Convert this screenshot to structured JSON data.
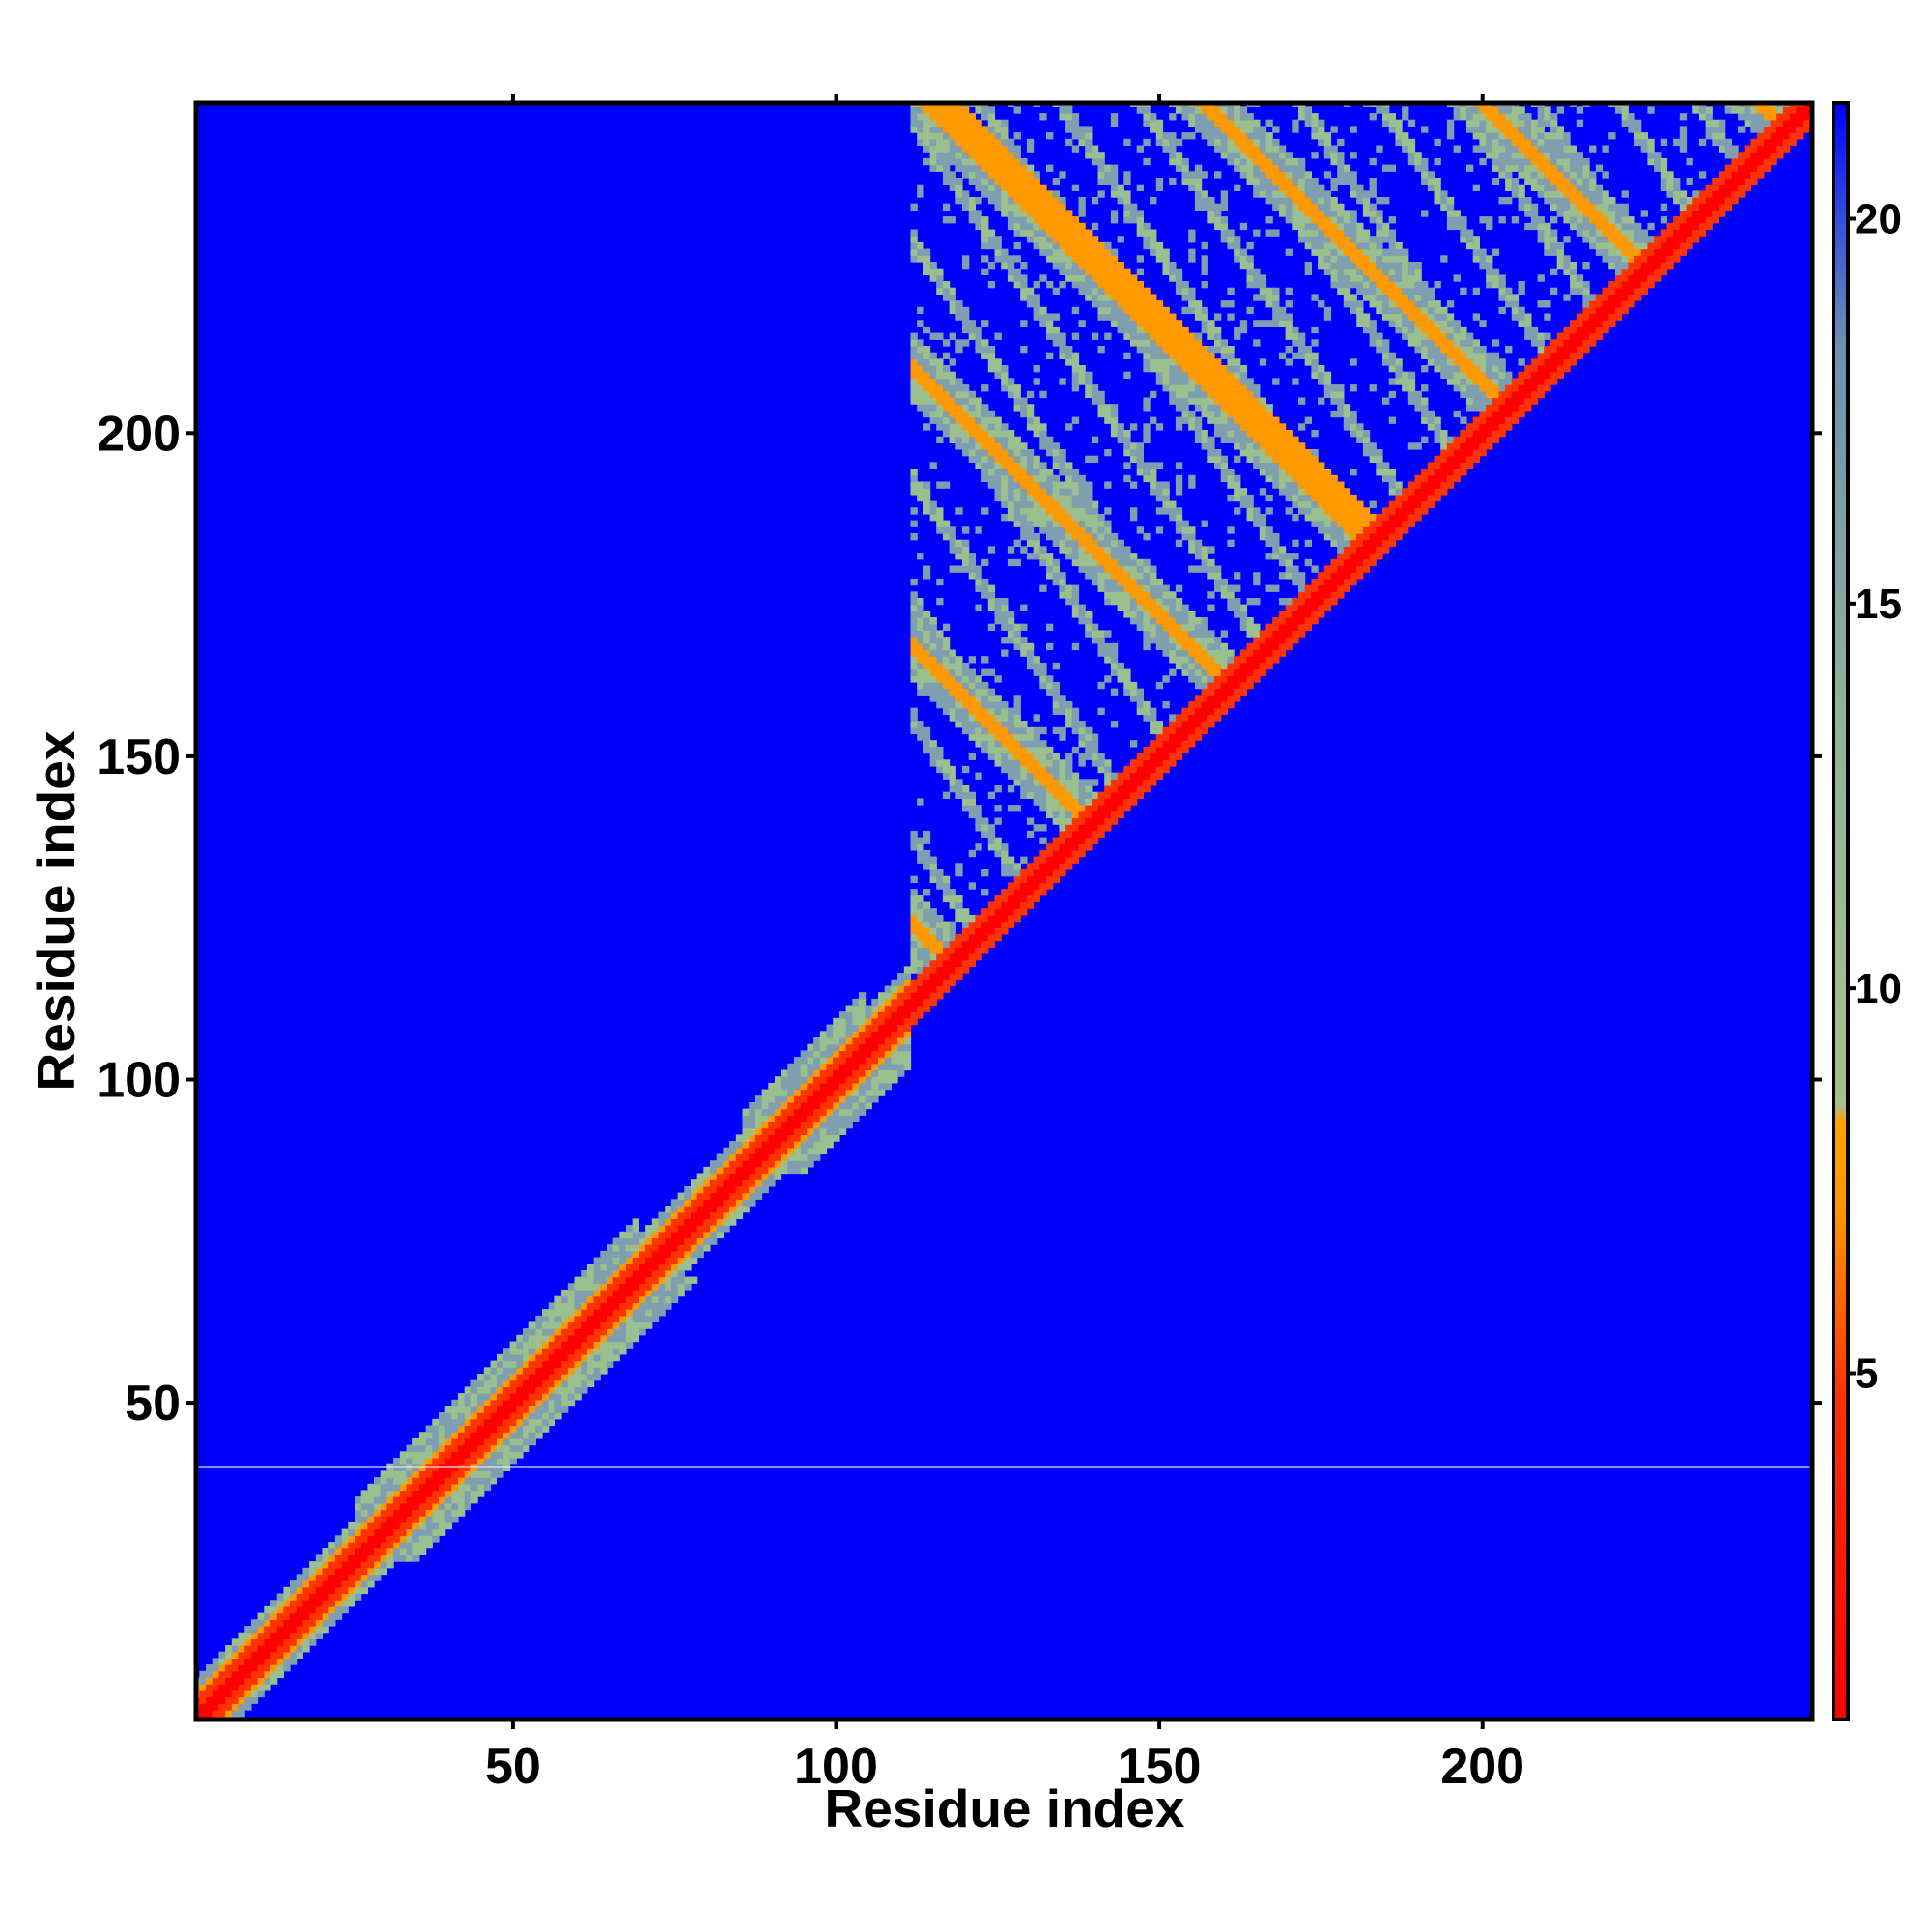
{
  "chart_data": {
    "type": "heatmap",
    "title": "",
    "xlabel": "Residue index",
    "ylabel": "Residue index",
    "xlim": [
      1,
      251
    ],
    "ylim": [
      1,
      251
    ],
    "x_ticks": [
      50,
      100,
      150,
      200
    ],
    "y_ticks": [
      50,
      100,
      150,
      200
    ],
    "colorbar": {
      "range": [
        0.5,
        21.5
      ],
      "ticks": [
        5,
        10,
        15,
        20
      ],
      "colors": {
        "near": "#ff0000",
        "mid": "#ff9900",
        "far_band": "#9bbf8e",
        "background": "#0000ff"
      }
    },
    "features": {
      "diagonal": "distance near 0 along residue i = j for all residues 1-251",
      "n_terminal_band": "contacts close to the diagonal only, residues 1-110",
      "c_terminal_domain": "dense off-diagonal contact pattern among residues 113-251",
      "anti_diagonal_segments": [
        [
          116,
          251,
          251,
          116
        ],
        [
          130,
          240,
          240,
          130
        ],
        [
          150,
          230,
          230,
          150
        ]
      ]
    },
    "grid": false
  }
}
